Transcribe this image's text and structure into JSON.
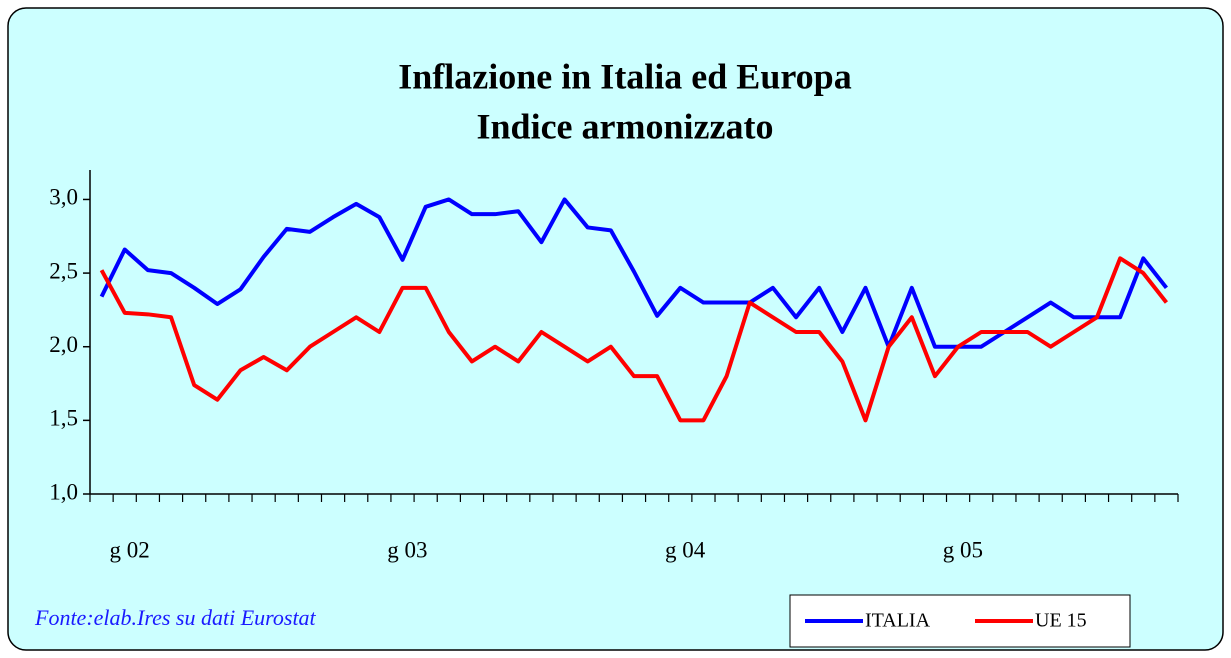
{
  "chart_data": {
    "type": "line",
    "title": "Inflazione in Italia ed Europa",
    "subtitle": "Indice armonizzato",
    "source": "Fonte:elab.Ires su dati Eurostat",
    "categories": [
      "g 02",
      null,
      null,
      null,
      null,
      null,
      null,
      null,
      null,
      null,
      null,
      null,
      "g 03",
      null,
      null,
      null,
      null,
      null,
      null,
      null,
      null,
      null,
      null,
      null,
      "g 04",
      null,
      null,
      null,
      null,
      null,
      null,
      null,
      null,
      null,
      null,
      null,
      "g 05",
      null,
      null,
      null,
      null,
      null,
      null,
      null,
      null,
      null,
      null
    ],
    "series": [
      {
        "name": "ITALIA",
        "color": "#0000ff",
        "values": [
          2.34,
          2.66,
          2.52,
          2.5,
          2.4,
          2.29,
          2.39,
          2.61,
          2.8,
          2.78,
          2.88,
          2.97,
          2.88,
          2.59,
          2.95,
          3.0,
          2.9,
          2.9,
          2.92,
          2.71,
          3.0,
          2.81,
          2.79,
          2.51,
          2.21,
          2.4,
          2.3,
          2.3,
          2.3,
          2.4,
          2.2,
          2.4,
          2.1,
          2.4,
          2.0,
          2.4,
          2.0,
          2.0,
          2.0,
          2.1,
          2.2,
          2.3,
          2.2,
          2.2,
          2.2,
          2.6,
          2.4
        ]
      },
      {
        "name": "UE 15",
        "color": "#ff0000",
        "values": [
          2.52,
          2.23,
          2.22,
          2.2,
          1.74,
          1.64,
          1.84,
          1.93,
          1.84,
          2.0,
          2.1,
          2.2,
          2.1,
          2.4,
          2.4,
          2.1,
          1.9,
          2.0,
          1.9,
          2.1,
          2.0,
          1.9,
          2.0,
          1.8,
          1.8,
          1.5,
          1.5,
          1.8,
          2.3,
          2.2,
          2.1,
          2.1,
          1.9,
          1.5,
          2.0,
          2.2,
          1.8,
          2.0,
          2.1,
          2.1,
          2.1,
          2.0,
          2.1,
          2.2,
          2.6,
          2.5,
          2.3
        ]
      }
    ],
    "ylim": [
      1.0,
      3.2
    ],
    "yticks": [
      {
        "value": 1.0,
        "label": "1,0"
      },
      {
        "value": 1.5,
        "label": "1,5"
      },
      {
        "value": 2.0,
        "label": "2,0"
      },
      {
        "value": 2.5,
        "label": "2,5"
      },
      {
        "value": 3.0,
        "label": "3,0"
      }
    ],
    "legend": "bottom-right"
  }
}
